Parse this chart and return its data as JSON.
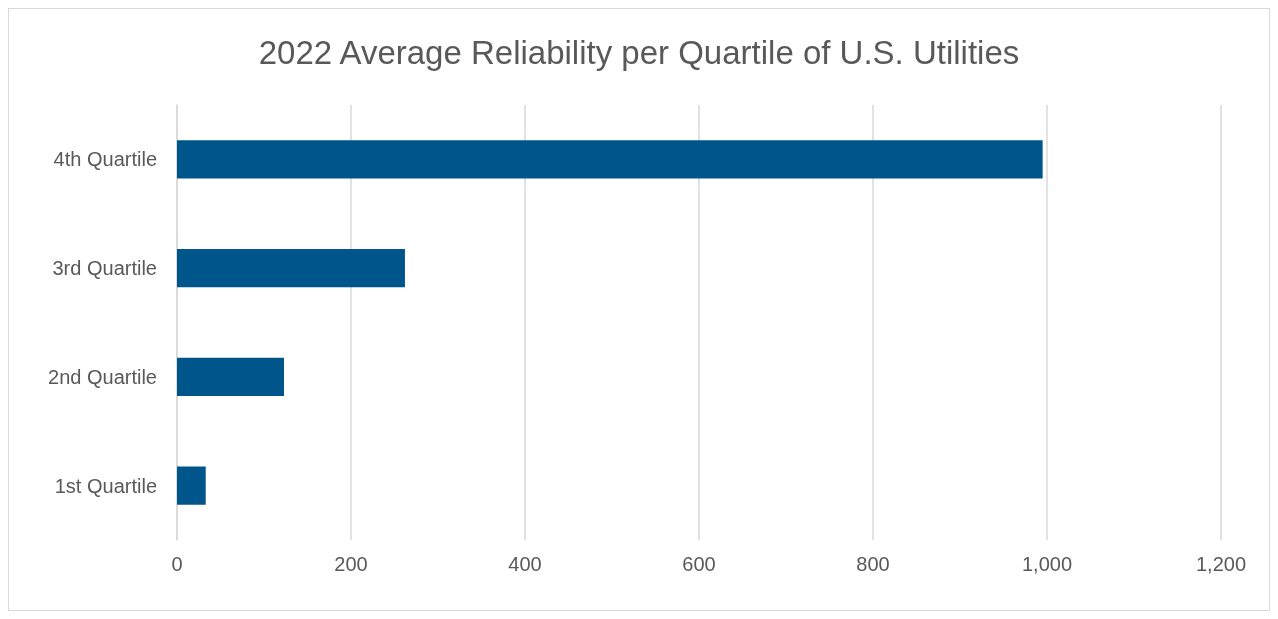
{
  "chart_data": {
    "type": "bar",
    "orientation": "horizontal",
    "title": "2022 Average Reliability per Quartile of U.S. Utilities",
    "categories": [
      "4th Quartile",
      "3rd Quartile",
      "2nd Quartile",
      "1st Quartile"
    ],
    "values": [
      995,
      262,
      123,
      33
    ],
    "color": "#00558b",
    "xlim": [
      0,
      1200
    ],
    "xticks": [
      0,
      200,
      400,
      600,
      800,
      {
        "value": 1000,
        "label": "1,000"
      },
      {
        "value": 1200,
        "label": "1,200"
      }
    ],
    "grid": "x"
  }
}
